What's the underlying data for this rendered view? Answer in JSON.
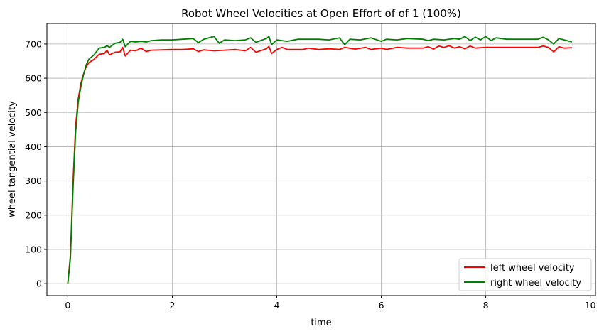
{
  "chart_data": {
    "type": "line",
    "title": "Robot Wheel Velocities at Open Effort of of 1 (100%)",
    "xlabel": "time",
    "ylabel": "wheel tangential velocity",
    "xlim": [
      -0.4,
      10.1
    ],
    "ylim": [
      -35,
      760
    ],
    "x_ticks": [
      0,
      2,
      4,
      6,
      8,
      10
    ],
    "y_ticks": [
      0,
      100,
      200,
      300,
      400,
      500,
      600,
      700
    ],
    "grid": true,
    "legend_position": "bottom-right",
    "series": [
      {
        "name": "left wheel velocity",
        "color": "#ff0000",
        "points": [
          [
            0,
            0
          ],
          [
            0.05,
            85
          ],
          [
            0.1,
            300
          ],
          [
            0.15,
            460
          ],
          [
            0.2,
            540
          ],
          [
            0.25,
            585
          ],
          [
            0.3,
            612
          ],
          [
            0.35,
            632
          ],
          [
            0.4,
            645
          ],
          [
            0.5,
            655
          ],
          [
            0.6,
            670
          ],
          [
            0.7,
            672
          ],
          [
            0.75,
            682
          ],
          [
            0.8,
            668
          ],
          [
            0.9,
            676
          ],
          [
            1.0,
            677
          ],
          [
            1.05,
            690
          ],
          [
            1.1,
            665
          ],
          [
            1.2,
            682
          ],
          [
            1.3,
            680
          ],
          [
            1.4,
            688
          ],
          [
            1.5,
            678
          ],
          [
            1.6,
            682
          ],
          [
            1.8,
            683
          ],
          [
            2.0,
            684
          ],
          [
            2.2,
            684
          ],
          [
            2.4,
            686
          ],
          [
            2.5,
            678
          ],
          [
            2.6,
            683
          ],
          [
            2.8,
            680
          ],
          [
            3.0,
            682
          ],
          [
            3.2,
            684
          ],
          [
            3.4,
            680
          ],
          [
            3.5,
            690
          ],
          [
            3.6,
            676
          ],
          [
            3.8,
            686
          ],
          [
            3.85,
            693
          ],
          [
            3.9,
            672
          ],
          [
            4.0,
            684
          ],
          [
            4.1,
            690
          ],
          [
            4.2,
            684
          ],
          [
            4.5,
            684
          ],
          [
            4.6,
            688
          ],
          [
            4.8,
            684
          ],
          [
            5.0,
            686
          ],
          [
            5.2,
            684
          ],
          [
            5.3,
            690
          ],
          [
            5.5,
            685
          ],
          [
            5.7,
            690
          ],
          [
            5.8,
            684
          ],
          [
            6.0,
            688
          ],
          [
            6.1,
            684
          ],
          [
            6.3,
            690
          ],
          [
            6.5,
            688
          ],
          [
            6.8,
            688
          ],
          [
            6.9,
            692
          ],
          [
            7.0,
            685
          ],
          [
            7.1,
            694
          ],
          [
            7.2,
            690
          ],
          [
            7.3,
            695
          ],
          [
            7.4,
            688
          ],
          [
            7.5,
            692
          ],
          [
            7.6,
            686
          ],
          [
            7.7,
            694
          ],
          [
            7.8,
            688
          ],
          [
            8.0,
            690
          ],
          [
            8.5,
            690
          ],
          [
            9.0,
            690
          ],
          [
            9.1,
            694
          ],
          [
            9.2,
            690
          ],
          [
            9.3,
            677
          ],
          [
            9.4,
            692
          ],
          [
            9.5,
            688
          ],
          [
            9.65,
            689
          ]
        ]
      },
      {
        "name": "right wheel velocity",
        "color": "#008000",
        "points": [
          [
            0,
            0
          ],
          [
            0.05,
            75
          ],
          [
            0.1,
            280
          ],
          [
            0.15,
            440
          ],
          [
            0.2,
            530
          ],
          [
            0.25,
            575
          ],
          [
            0.3,
            610
          ],
          [
            0.35,
            638
          ],
          [
            0.4,
            655
          ],
          [
            0.5,
            668
          ],
          [
            0.6,
            688
          ],
          [
            0.7,
            690
          ],
          [
            0.75,
            695
          ],
          [
            0.8,
            690
          ],
          [
            0.9,
            702
          ],
          [
            1.0,
            705
          ],
          [
            1.05,
            714
          ],
          [
            1.1,
            692
          ],
          [
            1.2,
            708
          ],
          [
            1.3,
            706
          ],
          [
            1.4,
            708
          ],
          [
            1.5,
            706
          ],
          [
            1.6,
            710
          ],
          [
            1.8,
            712
          ],
          [
            2.0,
            712
          ],
          [
            2.2,
            714
          ],
          [
            2.4,
            716
          ],
          [
            2.5,
            704
          ],
          [
            2.6,
            714
          ],
          [
            2.8,
            722
          ],
          [
            2.9,
            702
          ],
          [
            3.0,
            712
          ],
          [
            3.2,
            710
          ],
          [
            3.4,
            712
          ],
          [
            3.5,
            718
          ],
          [
            3.6,
            705
          ],
          [
            3.8,
            716
          ],
          [
            3.85,
            722
          ],
          [
            3.9,
            698
          ],
          [
            4.0,
            712
          ],
          [
            4.2,
            708
          ],
          [
            4.4,
            714
          ],
          [
            4.6,
            714
          ],
          [
            4.8,
            714
          ],
          [
            5.0,
            712
          ],
          [
            5.2,
            718
          ],
          [
            5.3,
            698
          ],
          [
            5.4,
            714
          ],
          [
            5.6,
            712
          ],
          [
            5.8,
            718
          ],
          [
            6.0,
            708
          ],
          [
            6.1,
            714
          ],
          [
            6.3,
            712
          ],
          [
            6.5,
            716
          ],
          [
            6.8,
            714
          ],
          [
            6.9,
            710
          ],
          [
            7.0,
            714
          ],
          [
            7.2,
            712
          ],
          [
            7.4,
            716
          ],
          [
            7.5,
            714
          ],
          [
            7.6,
            722
          ],
          [
            7.7,
            710
          ],
          [
            7.8,
            720
          ],
          [
            7.9,
            712
          ],
          [
            8.0,
            722
          ],
          [
            8.1,
            710
          ],
          [
            8.2,
            718
          ],
          [
            8.4,
            714
          ],
          [
            8.6,
            714
          ],
          [
            8.8,
            714
          ],
          [
            9.0,
            714
          ],
          [
            9.1,
            720
          ],
          [
            9.2,
            712
          ],
          [
            9.3,
            700
          ],
          [
            9.4,
            716
          ],
          [
            9.5,
            712
          ],
          [
            9.65,
            706
          ]
        ]
      }
    ]
  }
}
